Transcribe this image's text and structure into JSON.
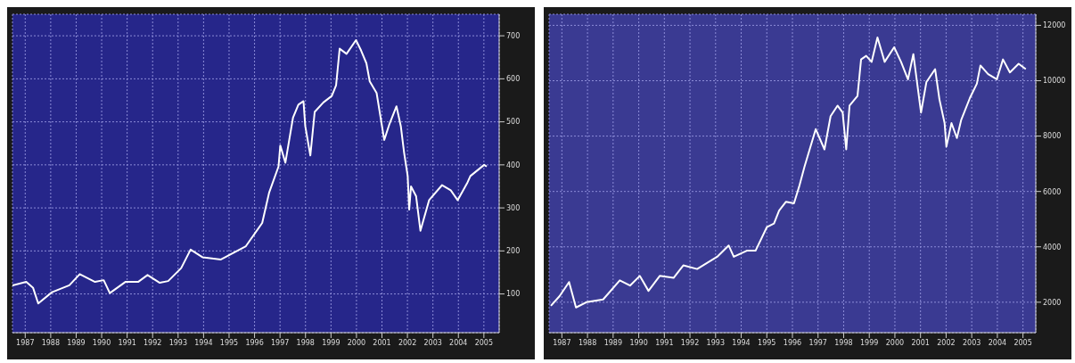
{
  "chart_data": [
    {
      "type": "line",
      "x": [
        1987.0,
        1987.54,
        1987.81,
        1988.01,
        1988.55,
        1989.23,
        1989.64,
        1990.24,
        1990.58,
        1990.82,
        1991.43,
        1991.93,
        1992.3,
        1992.78,
        1993.11,
        1993.62,
        1993.99,
        1994.47,
        1995.18,
        1996.16,
        1996.8,
        1997.07,
        1997.44,
        1997.51,
        1997.71,
        1998.01,
        1998.22,
        1998.42,
        1998.49,
        1998.69,
        1998.86,
        1999.2,
        1999.53,
        1999.7,
        1999.84,
        2000.11,
        2000.48,
        2000.68,
        2000.89,
        2001.02,
        2001.29,
        2001.59,
        2001.8,
        2002.07,
        2002.24,
        2002.37,
        2002.51,
        2002.57,
        2002.64,
        2002.84,
        2003.01,
        2003.35,
        2003.86,
        2004.2,
        2004.47,
        2004.84,
        2004.97,
        2005.51,
        2005.61
      ],
      "series": [
        {
          "color": "#ffffff",
          "values": [
            120,
            128,
            114,
            78,
            104,
            120,
            146,
            128,
            132,
            102,
            128,
            128,
            144,
            126,
            130,
            160,
            203,
            185,
            180,
            211,
            265,
            335,
            396,
            445,
            405,
            510,
            540,
            548,
            490,
            422,
            523,
            545,
            560,
            585,
            670,
            658,
            690,
            666,
            636,
            594,
            567,
            458,
            496,
            536,
            490,
            428,
            374,
            296,
            350,
            327,
            247,
            318,
            353,
            341,
            318,
            357,
            374,
            400,
            396
          ]
        }
      ],
      "xlim": [
        1987,
        2006.1
      ],
      "xticks": [
        {
          "value": 1987.5,
          "label": "1987"
        },
        {
          "value": 1988.5,
          "label": "1988"
        },
        {
          "value": 1989.5,
          "label": "1989"
        },
        {
          "value": 1990.5,
          "label": "1990"
        },
        {
          "value": 1991.5,
          "label": "1991"
        },
        {
          "value": 1992.5,
          "label": "1992"
        },
        {
          "value": 1993.5,
          "label": "1993"
        },
        {
          "value": 1994.5,
          "label": "1994"
        },
        {
          "value": 1995.5,
          "label": "1995"
        },
        {
          "value": 1996.5,
          "label": "1996"
        },
        {
          "value": 1997.5,
          "label": "1997"
        },
        {
          "value": 1998.5,
          "label": "1998"
        },
        {
          "value": 1999.5,
          "label": "1999"
        },
        {
          "value": 2000.5,
          "label": "2000"
        },
        {
          "value": 2001.5,
          "label": "2001"
        },
        {
          "value": 2002.5,
          "label": "2002"
        },
        {
          "value": 2003.5,
          "label": "2003"
        },
        {
          "value": 2004.5,
          "label": "2004"
        },
        {
          "value": 2005.5,
          "label": "2005"
        }
      ],
      "ylim": [
        10,
        750
      ],
      "yticks": [
        100,
        200,
        300,
        400,
        500,
        600,
        700
      ],
      "grid": true
    },
    {
      "type": "line",
      "x": [
        1987.07,
        1987.41,
        1987.78,
        1988.05,
        1988.46,
        1989.11,
        1989.76,
        1990.16,
        1990.54,
        1990.88,
        1991.32,
        1991.86,
        1992.24,
        1992.78,
        1993.56,
        1994.01,
        1994.21,
        1994.72,
        1995.06,
        1995.5,
        1995.78,
        1995.98,
        1996.25,
        1996.56,
        1996.76,
        1996.97,
        1997.41,
        1997.75,
        1997.99,
        1998.26,
        1998.46,
        1998.6,
        1998.73,
        1999.04,
        1999.18,
        1999.38,
        1999.59,
        1999.82,
        2000.1,
        2000.47,
        2000.74,
        2001.01,
        2001.22,
        2001.52,
        2001.73,
        2002.07,
        2002.24,
        2002.44,
        2002.51,
        2002.71,
        2002.92,
        2003.09,
        2003.43,
        2003.7,
        2003.84,
        2004.14,
        2004.48,
        2004.72,
        2004.99,
        2005.33,
        2005.61
      ],
      "series": [
        {
          "color": "#ffffff",
          "values": [
            1870,
            2220,
            2730,
            1810,
            2000,
            2100,
            2790,
            2600,
            2950,
            2410,
            2950,
            2880,
            3330,
            3200,
            3640,
            4050,
            3640,
            3860,
            3860,
            4710,
            4840,
            5310,
            5630,
            5570,
            6170,
            6890,
            8250,
            7520,
            8720,
            9100,
            8850,
            7520,
            9100,
            9450,
            10770,
            10900,
            10680,
            11560,
            10680,
            11210,
            10680,
            10050,
            10960,
            8850,
            9950,
            10420,
            9320,
            8470,
            7620,
            8470,
            7930,
            8590,
            9380,
            9890,
            10550,
            10240,
            10050,
            10770,
            10300,
            10610,
            10420
          ]
        }
      ],
      "xlim": [
        1987,
        2006
      ],
      "xticks": [
        {
          "value": 1987.5,
          "label": "1987"
        },
        {
          "value": 1988.5,
          "label": "1988"
        },
        {
          "value": 1989.5,
          "label": "1989"
        },
        {
          "value": 1990.5,
          "label": "1990"
        },
        {
          "value": 1991.5,
          "label": "1991"
        },
        {
          "value": 1992.5,
          "label": "1992"
        },
        {
          "value": 1993.5,
          "label": "1993"
        },
        {
          "value": 1994.5,
          "label": "1994"
        },
        {
          "value": 1995.5,
          "label": "1995"
        },
        {
          "value": 1996.5,
          "label": "1996"
        },
        {
          "value": 1997.5,
          "label": "1997"
        },
        {
          "value": 1998.5,
          "label": "1998"
        },
        {
          "value": 1999.5,
          "label": "1999"
        },
        {
          "value": 2000.5,
          "label": "2000"
        },
        {
          "value": 2001.5,
          "label": "2001"
        },
        {
          "value": 2002.5,
          "label": "2002"
        },
        {
          "value": 2003.5,
          "label": "2003"
        },
        {
          "value": 2004.5,
          "label": "2004"
        },
        {
          "value": 2005.5,
          "label": "2005"
        }
      ],
      "ylim": [
        900,
        12400
      ],
      "yticks": [
        2000,
        4000,
        6000,
        8000,
        10000,
        12000
      ],
      "grid": true
    }
  ]
}
